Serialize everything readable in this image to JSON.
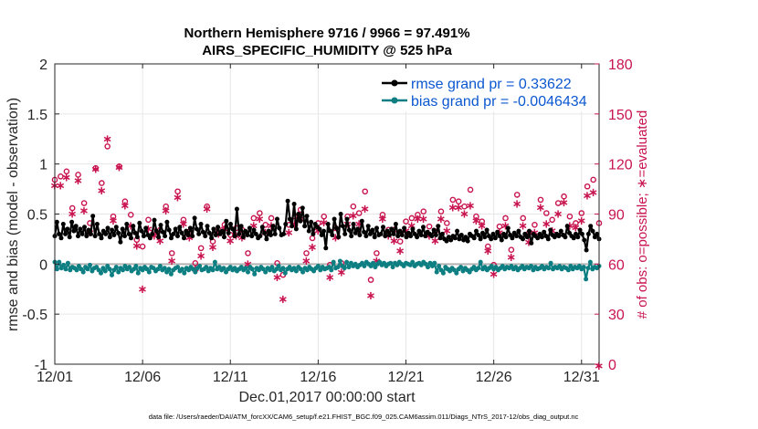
{
  "chart_data": {
    "type": "line",
    "title_line1": "Northern Hemisphere 9716 / 9966 = 97.491%",
    "title_line2": "AIRS_SPECIFIC_HUMIDITY @ 525 hPa",
    "xlabel": "Dec.01,2017 00:00:00 start",
    "ylabel_left": "rmse and bias (model - observation)",
    "ylabel_right": "# of obs: o=possible; ∗=evaluated",
    "ylim_left": [
      -1,
      2
    ],
    "ylim_right": [
      0,
      180
    ],
    "xlim": [
      0,
      31
    ],
    "x_tick_values": [
      0,
      5,
      10,
      15,
      20,
      25,
      30
    ],
    "x_tick_labels": [
      "12/01",
      "12/06",
      "12/11",
      "12/16",
      "12/21",
      "12/26",
      "12/31"
    ],
    "y_left_ticks": [
      "2",
      "1.5",
      "1",
      "0.5",
      "0",
      "-0.5",
      "-1"
    ],
    "y_left_tick_values": [
      2,
      1.5,
      1,
      0.5,
      0,
      -0.5,
      -1
    ],
    "y_right_ticks": [
      "180",
      "150",
      "120",
      "90",
      "60",
      "30",
      "0"
    ],
    "y_right_tick_values": [
      180,
      150,
      120,
      90,
      60,
      30,
      0
    ],
    "grid": true,
    "legend_position": "top-right",
    "series": [
      {
        "name": "rmse grand pr = 0.33622",
        "color": "#000000",
        "values": [
          0.28,
          0.42,
          0.3,
          0.26,
          0.4,
          0.3,
          0.35,
          0.27,
          0.42,
          0.33,
          0.38,
          0.28,
          0.35,
          0.3,
          0.37,
          0.28,
          0.34,
          0.3,
          0.48,
          0.28,
          0.4,
          0.3,
          0.26,
          0.33,
          0.3,
          0.36,
          0.27,
          0.34,
          0.29,
          0.37,
          0.31,
          0.22,
          0.35,
          0.28,
          0.4,
          0.3,
          0.26,
          0.38,
          0.31,
          0.27,
          0.41,
          0.33,
          0.28,
          0.36,
          0.29,
          0.26,
          0.3,
          0.44,
          0.33,
          0.27,
          0.39,
          0.32,
          0.28,
          0.42,
          0.34,
          0.26,
          0.3,
          0.35,
          0.28,
          0.37,
          0.31,
          0.26,
          0.33,
          0.29,
          0.36,
          0.28,
          0.46,
          0.35,
          0.3,
          0.4,
          0.32,
          0.28,
          0.38,
          0.31,
          0.26,
          0.35,
          0.29,
          0.37,
          0.3,
          0.33,
          0.27,
          0.43,
          0.31,
          0.4,
          0.35,
          0.28,
          0.55,
          0.3,
          0.38,
          0.27,
          0.33,
          0.29,
          0.36,
          0.28,
          0.34,
          0.3,
          0.26,
          0.28,
          0.37,
          0.31,
          0.25,
          0.33,
          0.29,
          0.38,
          0.3,
          0.45,
          0.36,
          0.29,
          0.3,
          0.4,
          0.63,
          0.45,
          0.38,
          0.6,
          0.35,
          0.5,
          0.43,
          0.56,
          0.38,
          0.48,
          0.33,
          0.42,
          0.3,
          0.4,
          0.37,
          0.35,
          0.29,
          0.33,
          0.16,
          0.4,
          0.33,
          0.29,
          0.45,
          0.36,
          0.27,
          0.5,
          0.38,
          0.3,
          0.45,
          0.34,
          0.28,
          0.4,
          0.31,
          0.35,
          0.29,
          0.43,
          0.32,
          0.28,
          0.38,
          0.3,
          0.34,
          0.27,
          0.36,
          0.29,
          0.3,
          0.37,
          0.28,
          0.33,
          0.29,
          0.35,
          0.3,
          0.4,
          0.28,
          0.33,
          0.29,
          0.36,
          0.27,
          0.31,
          0.28,
          0.35,
          0.3,
          0.27,
          0.33,
          0.29,
          0.37,
          0.28,
          0.32,
          0.3,
          0.28,
          0.34,
          0.29,
          0.38,
          0.26,
          0.3,
          0.25,
          0.23,
          0.27,
          0.24,
          0.28,
          0.26,
          0.33,
          0.25,
          0.29,
          0.24,
          0.27,
          0.23,
          0.3,
          0.28,
          0.26,
          0.33,
          0.29,
          0.25,
          0.31,
          0.27,
          0.34,
          0.28,
          0.25,
          0.3,
          0.26,
          0.32,
          0.28,
          0.24,
          0.3,
          0.27,
          0.36,
          0.29,
          0.26,
          0.31,
          0.28,
          0.33,
          0.27,
          0.25,
          0.3,
          0.27,
          0.33,
          0.21,
          0.3,
          0.28,
          0.26,
          0.3,
          0.27,
          0.32,
          0.28,
          0.25,
          0.34,
          0.29,
          0.27,
          0.3,
          0.28,
          0.33,
          0.29,
          0.27,
          0.38,
          0.31,
          0.28,
          0.26,
          0.3,
          0.27,
          0.34,
          0.3,
          0.24,
          0.14,
          0.3,
          0.38,
          0.33,
          0.27,
          0.3,
          0.25
        ]
      },
      {
        "name": "bias grand pr = -0.0046434",
        "color": "#0d7f82",
        "values": [
          0.02,
          -0.05,
          0.02,
          -0.04,
          -0.01,
          -0.05,
          0.01,
          -0.06,
          -0.03,
          -0.04,
          -0.06,
          -0.02,
          -0.05,
          -0.08,
          -0.03,
          -0.05,
          -0.01,
          -0.07,
          -0.04,
          -0.03,
          -0.06,
          -0.09,
          -0.04,
          -0.07,
          -0.02,
          -0.05,
          -0.11,
          -0.06,
          -0.03,
          -0.08,
          -0.04,
          -0.06,
          -0.02,
          -0.05,
          -0.03,
          -0.07,
          -0.05,
          -0.02,
          -0.09,
          -0.04,
          -0.06,
          -0.03,
          -0.05,
          -0.08,
          -0.03,
          -0.04,
          -0.07,
          -0.05,
          -0.02,
          -0.06,
          -0.04,
          -0.08,
          -0.05,
          -0.1,
          -0.06,
          -0.04,
          -0.03,
          -0.07,
          -0.05,
          -0.09,
          -0.04,
          -0.06,
          -0.03,
          -0.05,
          -0.08,
          -0.04,
          -0.02,
          -0.06,
          -0.05,
          -0.03,
          -0.07,
          -0.04,
          -0.06,
          0.02,
          -0.05,
          -0.03,
          -0.06,
          -0.04,
          -0.08,
          -0.05,
          -0.03,
          -0.06,
          -0.04,
          -0.07,
          -0.05,
          -0.03,
          -0.06,
          -0.04,
          -0.08,
          -0.03,
          -0.05,
          -0.1,
          -0.04,
          -0.06,
          -0.03,
          -0.05,
          -0.08,
          -0.04,
          -0.06,
          -0.03,
          -0.07,
          -0.05,
          -0.02,
          -0.06,
          -0.04,
          -0.09,
          -0.05,
          -0.03,
          -0.06,
          -0.04,
          -0.07,
          -0.03,
          -0.05,
          -0.08,
          -0.04,
          -0.06,
          -0.03,
          -0.05,
          -0.07,
          -0.04,
          -0.02,
          -0.06,
          -0.03,
          -0.05,
          -0.04,
          -0.03,
          -0.06,
          0.02,
          -0.04,
          -0.03,
          0.03,
          -0.02,
          -0.04,
          0.02,
          -0.03,
          0.01,
          -0.02,
          0.0,
          -0.03,
          -0.01,
          0.01,
          -0.02,
          0.02,
          0.0,
          -0.02,
          0.01,
          -0.03,
          0.0,
          0.02,
          -0.01,
          0.01,
          -0.02,
          0.0,
          0.01,
          -0.03,
          0.01,
          -0.01,
          0.02,
          0.0,
          -0.02,
          0.01,
          0.0,
          -0.01,
          0.02,
          -0.02,
          0.0,
          0.01,
          -0.01,
          0.02,
          0.0,
          -0.03,
          0.01,
          -0.02,
          0.01,
          -0.08,
          -0.02,
          -0.06,
          -0.09,
          -0.03,
          -0.05,
          -0.07,
          -0.04,
          -0.06,
          -0.09,
          -0.05,
          -0.03,
          -0.07,
          -0.04,
          -0.06,
          -0.08,
          -0.05,
          -0.03,
          -0.06,
          -0.04,
          0.02,
          -0.05,
          -0.03,
          -0.06,
          -0.04,
          -0.02,
          -0.05,
          -0.03,
          -0.06,
          -0.04,
          -0.02,
          -0.05,
          -0.03,
          -0.04,
          -0.02,
          -0.05,
          -0.03,
          -0.06,
          -0.04,
          -0.02,
          -0.05,
          -0.03,
          -0.04,
          -0.02,
          -0.06,
          -0.03,
          -0.05,
          -0.04,
          -0.02,
          -0.05,
          -0.03,
          -0.04,
          0.01,
          -0.05,
          -0.03,
          -0.04,
          -0.02,
          -0.05,
          -0.03,
          -0.04,
          -0.06,
          -0.02,
          -0.05,
          -0.03,
          -0.04,
          -0.02,
          -0.05,
          -0.03,
          -0.15,
          -0.04,
          0.02,
          -0.05,
          -0.03,
          -0.04,
          -0.02
        ]
      }
    ],
    "obs": {
      "x": [
        0.0,
        0.33,
        0.67,
        1.0,
        1.33,
        1.67,
        2.0,
        2.33,
        2.67,
        3.0,
        3.33,
        3.67,
        4.0,
        4.33,
        4.67,
        5.0,
        5.33,
        5.67,
        6.0,
        6.33,
        6.67,
        7.0,
        7.33,
        7.67,
        8.0,
        8.33,
        8.67,
        9.0,
        9.33,
        9.67,
        10.0,
        10.33,
        10.67,
        11.0,
        11.33,
        11.67,
        12.0,
        12.33,
        12.67,
        13.0,
        13.33,
        13.67,
        14.0,
        14.33,
        14.67,
        15.0,
        15.33,
        15.67,
        16.0,
        16.33,
        16.67,
        17.0,
        17.33,
        17.67,
        18.0,
        18.33,
        18.67,
        19.0,
        19.33,
        19.67,
        20.0,
        20.33,
        20.67,
        21.0,
        21.33,
        21.67,
        22.0,
        22.33,
        22.67,
        23.0,
        23.33,
        23.67,
        24.0,
        24.33,
        24.67,
        25.0,
        25.33,
        25.67,
        26.0,
        26.33,
        26.67,
        27.0,
        27.33,
        27.67,
        28.0,
        28.33,
        28.67,
        29.0,
        29.33,
        29.67,
        30.0,
        30.33,
        30.67,
        31.0
      ],
      "possible": [
        110,
        112,
        115,
        93,
        113,
        96,
        84,
        117,
        108,
        130,
        88,
        118,
        97,
        89,
        74,
        70,
        86,
        79,
        80,
        94,
        66,
        103,
        86,
        79,
        60,
        69,
        94,
        73,
        80,
        83,
        77,
        81,
        80,
        66,
        87,
        90,
        83,
        87,
        60,
        53,
        83,
        88,
        92,
        66,
        75,
        84,
        88,
        59,
        81,
        60,
        88,
        94,
        90,
        103,
        50,
        66,
        89,
        80,
        80,
        73,
        85,
        87,
        89,
        91,
        82,
        79,
        91,
        84,
        98,
        97,
        94,
        104,
        88,
        85,
        70,
        59,
        82,
        87,
        68,
        101,
        87,
        78,
        83,
        98,
        90,
        86,
        96,
        100,
        88,
        84,
        90,
        106,
        110,
        84
      ],
      "evaluated": [
        108,
        108,
        113,
        91,
        111,
        93,
        80,
        118,
        105,
        136,
        87,
        119,
        96,
        84,
        72,
        46,
        82,
        78,
        75,
        93,
        63,
        101,
        85,
        77,
        58,
        66,
        94,
        71,
        79,
        82,
        75,
        78,
        77,
        61,
        84,
        88,
        80,
        84,
        53,
        40,
        80,
        85,
        88,
        63,
        71,
        81,
        86,
        53,
        77,
        56,
        85,
        90,
        85,
        94,
        42,
        63,
        88,
        78,
        75,
        69,
        81,
        84,
        88,
        88,
        78,
        75,
        88,
        81,
        95,
        95,
        91,
        96,
        87,
        84,
        69,
        55,
        80,
        84,
        65,
        97,
        84,
        74,
        80,
        95,
        85,
        81,
        91,
        98,
        84,
        83,
        87,
        102,
        104,
        0
      ]
    }
  },
  "legend": {
    "rmse_label": "rmse grand pr = 0.33622",
    "bias_label": "bias grand pr = -0.0046434"
  },
  "footer": "data file: /Users/raeder/DAI/ATM_forcXX/CAM6_setup/f.e21.FHIST_BGC.f09_025.CAM6assim.011/Diags_NTrS_2017-12/obs_diag_output.nc",
  "colors": {
    "rmse": "#000000",
    "bias": "#0d7f82",
    "obs": "#c8144f",
    "grid": "#e6e6e6",
    "zero": "#b3b3b3"
  }
}
